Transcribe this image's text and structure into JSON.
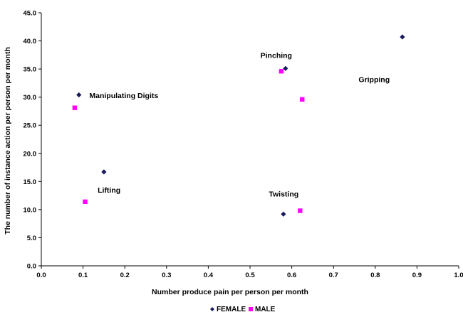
{
  "chart_data": {
    "type": "scatter",
    "title": "",
    "xlabel": "Number produce pain per person per month",
    "ylabel": "The number of instance action per person per month",
    "xlim": [
      0.0,
      1.0
    ],
    "ylim": [
      0.0,
      45.0
    ],
    "x_ticks": [
      "0.0",
      "0.1",
      "0.2",
      "0.3",
      "0.4",
      "0.5",
      "0.6",
      "0.7",
      "0.8",
      "0.9",
      "1.0"
    ],
    "y_ticks": [
      "0.0",
      "5.0",
      "10.0",
      "15.0",
      "20.0",
      "25.0",
      "30.0",
      "35.0",
      "40.0",
      "45.0"
    ],
    "grid": false,
    "legend_position": "bottom",
    "series": [
      {
        "name": "FEMALE",
        "color": "#1a1a5e",
        "marker": "diamond",
        "points": [
          {
            "x": 0.09,
            "y": 30.4
          },
          {
            "x": 0.15,
            "y": 16.7
          },
          {
            "x": 0.585,
            "y": 35.1
          },
          {
            "x": 0.865,
            "y": 40.7
          },
          {
            "x": 0.58,
            "y": 9.2
          }
        ]
      },
      {
        "name": "MALE",
        "color": "#ff00ff",
        "marker": "square",
        "points": [
          {
            "x": 0.08,
            "y": 28.1
          },
          {
            "x": 0.105,
            "y": 11.4
          },
          {
            "x": 0.575,
            "y": 34.6
          },
          {
            "x": 0.625,
            "y": 29.6
          },
          {
            "x": 0.62,
            "y": 9.8
          }
        ]
      }
    ],
    "annotations": [
      {
        "text": "Manipulating Digits",
        "x": 0.115,
        "y": 29.8
      },
      {
        "text": "Pinching",
        "x": 0.525,
        "y": 37.0
      },
      {
        "text": "Gripping",
        "x": 0.76,
        "y": 32.7
      },
      {
        "text": "Lifting",
        "x": 0.135,
        "y": 13.0
      },
      {
        "text": "Twisting",
        "x": 0.545,
        "y": 12.3
      }
    ]
  }
}
